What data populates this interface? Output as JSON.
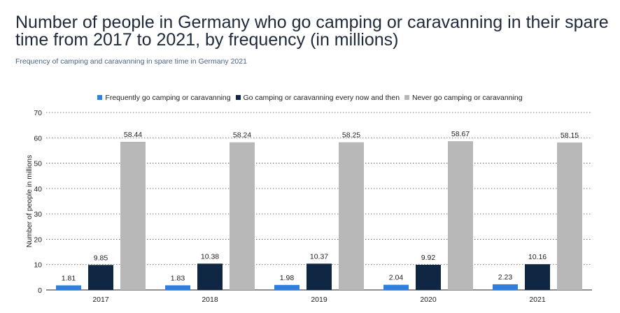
{
  "header": {
    "title": "Number of people in Germany who go camping or caravanning in their spare time from 2017 to 2021, by frequency (in millions)",
    "subtitle": "Frequency of camping and caravanning in spare time in Germany 2021"
  },
  "chart_data": {
    "type": "bar",
    "title": "Number of people in Germany who go camping or caravanning in their spare time from 2017 to 2021, by frequency (in millions)",
    "subtitle": "Frequency of camping and caravanning in spare time in Germany 2021",
    "xlabel": "",
    "ylabel": "Number of people in millions",
    "ylim": [
      0,
      70
    ],
    "yticks": [
      0,
      10,
      20,
      30,
      40,
      50,
      60,
      70
    ],
    "grid": true,
    "legend_position": "top-center",
    "categories": [
      "2017",
      "2018",
      "2019",
      "2020",
      "2021"
    ],
    "series": [
      {
        "name": "Frequently go camping or caravanning",
        "color": "#2e7fe0",
        "values": [
          1.81,
          1.83,
          1.98,
          2.04,
          2.23
        ]
      },
      {
        "name": "Go camping or caravanning every now and then",
        "color": "#0f2742",
        "values": [
          9.85,
          10.38,
          10.37,
          9.92,
          10.16
        ]
      },
      {
        "name": "Never go camping or caravanning",
        "color": "#b8b8b8",
        "values": [
          58.44,
          58.24,
          58.25,
          58.67,
          58.15
        ]
      }
    ]
  }
}
